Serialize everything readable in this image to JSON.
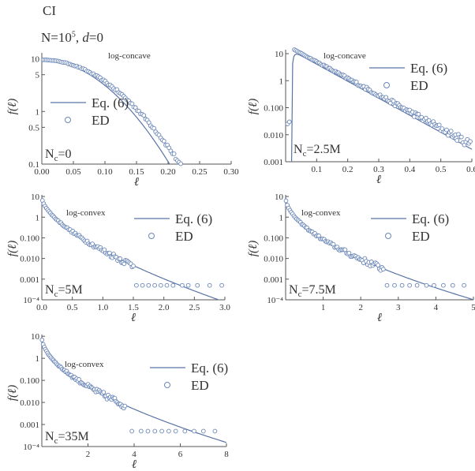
{
  "header": {
    "label": "CI",
    "params_prefix": "N=10",
    "params_exp": "5",
    "params_sep": ", ",
    "params_d": "d",
    "params_suffix": "=0"
  },
  "colors": {
    "line": "#5a74a6",
    "marker": "#6a86b8",
    "axis": "#555555"
  },
  "chart_data": [
    {
      "type": "scatter",
      "panel": "Nc-0",
      "title": "",
      "xlabel": "ℓ",
      "ylabel": "f(ℓ)",
      "annotation": "log-concave",
      "nc_label": "N",
      "nc_sub": "c",
      "nc_value": "=0",
      "yscale": "log",
      "xlim": [
        0,
        0.3
      ],
      "ylim": [
        0.1,
        13
      ],
      "xticks": [
        0.0,
        0.05,
        0.1,
        0.15,
        0.2,
        0.25,
        0.3
      ],
      "xtick_labels": [
        "0.00",
        "0.05",
        "0.10",
        "0.15",
        "0.20",
        "0.25",
        "0.30"
      ],
      "yticks": [
        0.1,
        0.5,
        1,
        5,
        10
      ],
      "ytick_labels": [
        "0.1",
        "0.5",
        "1",
        "5",
        "10"
      ],
      "legend": {
        "line": "Eq. (6)",
        "points": "ED",
        "placement": "middle-left"
      },
      "line_model": {
        "kind": "gauss",
        "a": 9.5,
        "c": 0.009
      },
      "points_model": {
        "kind": "gauss",
        "a": 9.6,
        "c": 0.0105,
        "x0": 0.002,
        "x1": 0.292,
        "n": 110,
        "noise": 0.12
      }
    },
    {
      "type": "scatter",
      "panel": "Nc-2.5M",
      "title": "",
      "xlabel": "ℓ",
      "ylabel": "f(ℓ)",
      "annotation": "log-concave",
      "nc_label": "N",
      "nc_sub": "c",
      "nc_value": "=2.5M",
      "yscale": "log",
      "xlim": [
        0,
        0.6
      ],
      "ylim": [
        0.001,
        14
      ],
      "xticks": [
        0.1,
        0.2,
        0.3,
        0.4,
        0.5,
        0.6
      ],
      "xtick_labels": [
        "0.1",
        "0.2",
        "0.3",
        "0.4",
        "0.5",
        "0.6"
      ],
      "yticks": [
        0.001,
        0.01,
        0.1,
        1,
        10
      ],
      "ytick_labels": [
        "0.001",
        "0.010",
        "0.100",
        "1",
        "10"
      ],
      "legend": {
        "line": "Eq. (6)",
        "points": "ED",
        "placement": "top-right"
      },
      "line_model": {
        "kind": "rise-exp",
        "a": 13,
        "b": 14.5,
        "x0": 0.02,
        "k": 0.006
      },
      "points_model": {
        "kind": "exp",
        "a": 14,
        "b": 14.2,
        "x0": 0.028,
        "x1": 0.595,
        "n": 120,
        "noise": 0.35,
        "extra": [
          [
            0.006,
            0.025
          ],
          [
            0.012,
            0.03
          ]
        ]
      }
    },
    {
      "type": "scatter",
      "panel": "Nc-5M",
      "title": "",
      "xlabel": "ℓ",
      "ylabel": "f(ℓ)",
      "annotation": "log-convex",
      "nc_label": "N",
      "nc_sub": "c",
      "nc_value": "=5M",
      "yscale": "log",
      "xlim": [
        0,
        3
      ],
      "ylim": [
        0.0001,
        12
      ],
      "xticks": [
        0.0,
        0.5,
        1.0,
        1.5,
        2.0,
        2.5,
        3.0
      ],
      "xtick_labels": [
        "0.0",
        "0.5",
        "1.0",
        "1.5",
        "2.0",
        "2.5",
        "3.0"
      ],
      "yticks": [
        0.0001,
        0.001,
        0.01,
        0.1,
        1,
        10
      ],
      "ytick_labels": [
        "10⁻⁴",
        "0.001",
        "0.010",
        "0.100",
        "1",
        "10"
      ],
      "legend": {
        "line": "Eq. (6)",
        "points": "ED",
        "placement": "top-right"
      },
      "line_model": {
        "kind": "convex",
        "a": 9,
        "p": 0.62,
        "b": 5.9
      },
      "points_model": {
        "kind": "convex",
        "a": 9,
        "p": 0.62,
        "b": 5.9,
        "x0": 0.01,
        "x1": 1.5,
        "n": 70,
        "noise": 0.4,
        "floor": 0.0005,
        "floor_x": [
          1.55,
          1.65,
          1.75,
          1.85,
          1.95,
          2.05,
          2.15,
          2.3,
          2.4,
          2.55,
          2.75,
          2.95
        ]
      }
    },
    {
      "type": "scatter",
      "panel": "Nc-7.5M",
      "title": "",
      "xlabel": "ℓ",
      "ylabel": "f(ℓ)",
      "annotation": "log-convex",
      "nc_label": "N",
      "nc_sub": "c",
      "nc_value": "=7.5M",
      "yscale": "log",
      "xlim": [
        0,
        5
      ],
      "ylim": [
        0.0001,
        12
      ],
      "xticks": [
        1,
        2,
        3,
        4,
        5
      ],
      "xtick_labels": [
        "1",
        "2",
        "3",
        "4",
        "5"
      ],
      "yticks": [
        0.0001,
        0.001,
        0.01,
        0.1,
        1,
        10
      ],
      "ytick_labels": [
        "10⁻⁴",
        "0.001",
        "0.010",
        "0.100",
        "1",
        "10"
      ],
      "legend": {
        "line": "Eq. (6)",
        "points": "ED",
        "placement": "top-right"
      },
      "line_model": {
        "kind": "convex",
        "a": 9,
        "p": 0.55,
        "b": 4.7
      },
      "points_model": {
        "kind": "convex",
        "a": 9,
        "p": 0.55,
        "b": 4.7,
        "x0": 0.01,
        "x1": 2.6,
        "n": 75,
        "noise": 0.4,
        "floor": 0.0005,
        "floor_x": [
          2.7,
          2.9,
          3.1,
          3.3,
          3.5,
          3.75,
          3.95,
          4.2,
          4.45,
          4.75
        ]
      }
    },
    {
      "type": "scatter",
      "panel": "Nc-35M",
      "title": "",
      "xlabel": "ℓ",
      "ylabel": "f(ℓ)",
      "annotation": "log-convex",
      "nc_label": "N",
      "nc_sub": "c",
      "nc_value": "=35M",
      "yscale": "log",
      "xlim": [
        0,
        8
      ],
      "ylim": [
        0.0001,
        12
      ],
      "xticks": [
        2,
        4,
        6,
        8
      ],
      "xtick_labels": [
        "2",
        "4",
        "6",
        "8"
      ],
      "yticks": [
        0.0001,
        0.001,
        0.01,
        0.1,
        1,
        10
      ],
      "ytick_labels": [
        "10⁻⁴",
        "0.001",
        "0.010",
        "0.100",
        "1",
        "10"
      ],
      "legend": {
        "line": "Eq. (6)",
        "points": "ED",
        "placement": "top-right"
      },
      "line_model": {
        "kind": "convex",
        "a": 9,
        "p": 0.55,
        "b": 3.5
      },
      "points_model": {
        "kind": "convex",
        "a": 9,
        "p": 0.55,
        "b": 3.5,
        "x0": 0.01,
        "x1": 3.6,
        "n": 75,
        "noise": 0.4,
        "floor": 0.0005,
        "floor_x": [
          3.9,
          4.3,
          4.6,
          4.9,
          5.2,
          5.5,
          5.8,
          6.2,
          6.6,
          7.0,
          7.5
        ]
      }
    }
  ]
}
